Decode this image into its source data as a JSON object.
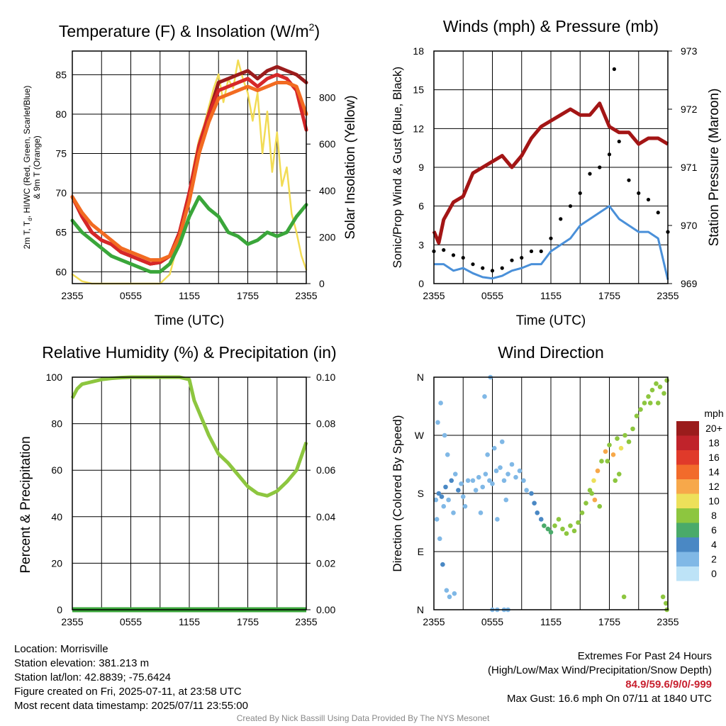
{
  "chart_data": [
    {
      "id": "temp",
      "type": "line",
      "title": "Temperature (F) & Insolation (W/m²)",
      "title_main": "Temperature (F) & Insolation (W/m",
      "title_sup": "2",
      "title_close": ")",
      "xlabel": "Time (UTC)",
      "ylabel_lines": [
        "2m T, T",
        "d",
        ", HI/WC (Red, Green, Scarlet/Blue)",
        "& 9m T (Orange)"
      ],
      "y2label": "Solar Insolation (Yellow)",
      "x_ticks": [
        "2355",
        "0555",
        "1155",
        "1755",
        "2355"
      ],
      "ylim": [
        58.5,
        88
      ],
      "y_ticks": [
        60,
        65,
        70,
        75,
        80,
        85
      ],
      "y2lim": [
        0,
        1000
      ],
      "y2_ticks": [
        0,
        200,
        400,
        600,
        800
      ],
      "series": [
        {
          "key": "insolation",
          "axis": "y2",
          "color": "#f2dc55",
          "hours": [
            0,
            1,
            2,
            3,
            4,
            5,
            6,
            7,
            8,
            9,
            10,
            11,
            11.5,
            12,
            12.5,
            13,
            13.5,
            14,
            14.5,
            15,
            15.5,
            16,
            16.5,
            17,
            17.5,
            18,
            18.5,
            19,
            19.5,
            20,
            20.5,
            21,
            21.5,
            22,
            22.5,
            23,
            23.5,
            24
          ],
          "values": [
            40,
            10,
            0,
            0,
            0,
            0,
            0,
            0,
            0,
            0,
            40,
            200,
            280,
            400,
            520,
            620,
            680,
            760,
            840,
            900,
            780,
            880,
            840,
            960,
            880,
            820,
            700,
            820,
            560,
            740,
            480,
            650,
            420,
            500,
            300,
            220,
            120,
            60
          ]
        },
        {
          "key": "temp_2m",
          "axis": "y1",
          "color": "#9b1c1c",
          "hours": [
            0,
            1,
            2,
            3,
            4,
            5,
            6,
            7,
            8,
            9,
            10,
            11,
            12,
            13,
            14,
            15,
            16,
            17,
            18,
            19,
            20,
            21,
            22,
            23,
            24
          ],
          "values": [
            69.5,
            67,
            65,
            64,
            63.5,
            62.5,
            62,
            61.5,
            61,
            61.2,
            62,
            65,
            70,
            76,
            80,
            84,
            84.5,
            85,
            85.5,
            84.5,
            85.5,
            86,
            85.5,
            85,
            84
          ]
        },
        {
          "key": "heat_index",
          "axis": "y1",
          "color": "#d62728",
          "hours": [
            0,
            1,
            2,
            3,
            4,
            5,
            6,
            7,
            8,
            9,
            10,
            11,
            12,
            13,
            14,
            15,
            16,
            17,
            18,
            19,
            20,
            21,
            22,
            23,
            24
          ],
          "values": [
            69.5,
            67,
            65,
            64,
            63.5,
            62.5,
            62,
            61.5,
            61,
            61.2,
            62,
            65,
            70,
            76,
            80,
            83,
            83.5,
            84,
            84.5,
            83.5,
            84.5,
            85,
            84.5,
            83,
            78
          ]
        },
        {
          "key": "temp_9m",
          "axis": "y1",
          "color": "#f26b21",
          "hours": [
            0,
            1,
            2,
            3,
            4,
            5,
            6,
            7,
            8,
            9,
            10,
            11,
            12,
            13,
            14,
            15,
            16,
            17,
            18,
            19,
            20,
            21,
            22,
            23,
            24
          ],
          "values": [
            69.5,
            67.5,
            66,
            65,
            64,
            63,
            62.5,
            62,
            61.5,
            61.5,
            62,
            64.5,
            69,
            75,
            79,
            82,
            82.5,
            83,
            83.5,
            83,
            83.5,
            84,
            84,
            83.5,
            80
          ]
        },
        {
          "key": "dewpoint",
          "axis": "y1",
          "color": "#3aa63a",
          "hours": [
            0,
            1,
            2,
            3,
            4,
            5,
            6,
            7,
            8,
            9,
            10,
            11,
            12,
            13,
            14,
            15,
            16,
            17,
            18,
            19,
            20,
            21,
            22,
            23,
            24
          ],
          "values": [
            66.5,
            65,
            64,
            63,
            62,
            61.5,
            61,
            60.5,
            60,
            60,
            61,
            63.5,
            67,
            69.5,
            68,
            67,
            65,
            64.5,
            63.5,
            64,
            65,
            64.5,
            65,
            67,
            68.5
          ]
        }
      ]
    },
    {
      "id": "wind",
      "type": "line",
      "title": "Winds (mph) & Pressure (mb)",
      "xlabel": "Time (UTC)",
      "ylabel": "Sonic/Prop Wind & Gust (Blue, Black)",
      "y2label": "Station Pressure (Maroon)",
      "x_ticks": [
        "2355",
        "0555",
        "1155",
        "1755",
        "2355"
      ],
      "ylim": [
        0,
        18
      ],
      "y_ticks": [
        0,
        3,
        6,
        9,
        12,
        15,
        18
      ],
      "y2lim": [
        969,
        973
      ],
      "y2_ticks": [
        969,
        970,
        971,
        972,
        973
      ],
      "series": [
        {
          "key": "wind_speed",
          "axis": "y1",
          "color": "#4a90d9",
          "hours": [
            0,
            1,
            2,
            3,
            4,
            5,
            6,
            7,
            8,
            9,
            10,
            11,
            12,
            13,
            14,
            15,
            16,
            17,
            18,
            19,
            20,
            21,
            22,
            23,
            24
          ],
          "values": [
            1.5,
            1.5,
            1,
            1.2,
            0.8,
            0.5,
            0.4,
            0.6,
            1,
            1.2,
            1.5,
            1.5,
            2.5,
            3,
            3.5,
            4.5,
            5,
            5.5,
            6,
            5,
            4.5,
            4,
            4,
            3.5,
            0.3
          ]
        },
        {
          "key": "gust",
          "axis": "y1",
          "color": "#000000",
          "hours": [
            0,
            1,
            2,
            3,
            4,
            5,
            6,
            7,
            8,
            9,
            10,
            11,
            12,
            13,
            14,
            15,
            16,
            17,
            18,
            18.5,
            19,
            20,
            21,
            22,
            23,
            24
          ],
          "values": [
            2.5,
            2.6,
            2.2,
            2,
            1.5,
            1.2,
            1,
            1.2,
            1.8,
            2,
            2.5,
            2.5,
            3.5,
            5,
            6,
            7,
            8.5,
            9,
            10,
            16.6,
            11,
            8,
            7,
            6.5,
            5.5,
            4
          ]
        },
        {
          "key": "pressure",
          "axis": "y2",
          "color": "#a31515",
          "hours": [
            0,
            0.5,
            1,
            2,
            3,
            4,
            5,
            6,
            7,
            8,
            9,
            10,
            11,
            12,
            13,
            14,
            15,
            16,
            17,
            18,
            19,
            20,
            21,
            22,
            23,
            24
          ],
          "values": [
            969.9,
            969.7,
            970.1,
            970.4,
            970.5,
            970.9,
            971.0,
            971.1,
            971.2,
            971.0,
            971.2,
            971.5,
            971.7,
            971.8,
            971.9,
            972.0,
            971.9,
            971.9,
            972.1,
            971.7,
            971.6,
            971.6,
            971.4,
            971.5,
            971.5,
            971.4
          ]
        }
      ]
    },
    {
      "id": "rh",
      "type": "line",
      "title": "Relative Humidity (%) & Precipitation (in)",
      "ylabel": "Percent & Precipitation",
      "x_ticks": [
        "2355",
        "0555",
        "1155",
        "1755",
        "2355"
      ],
      "ylim": [
        0,
        100
      ],
      "y_ticks": [
        0,
        20,
        40,
        60,
        80,
        100
      ],
      "y2lim": [
        0,
        0.1
      ],
      "y2_ticks": [
        "0.00",
        "0.02",
        "0.04",
        "0.06",
        "0.08",
        "0.10"
      ],
      "series": [
        {
          "key": "rh",
          "axis": "y1",
          "color": "#8dc63f",
          "hours": [
            0,
            0.5,
            1,
            2,
            3,
            4,
            5,
            6,
            7,
            8,
            9,
            10,
            11,
            12,
            12.5,
            13,
            14,
            15,
            16,
            17,
            18,
            19,
            20,
            21,
            22,
            23,
            24
          ],
          "values": [
            91,
            95,
            97,
            98,
            99,
            99.5,
            99.8,
            100,
            100,
            100,
            100,
            100,
            100,
            99,
            90,
            85,
            75,
            67,
            63,
            58,
            53,
            50,
            49,
            51,
            55,
            60,
            72
          ]
        },
        {
          "key": "precip",
          "axis": "y2",
          "color": "#3aa63a",
          "hours": [
            0,
            24
          ],
          "values": [
            0,
            0
          ]
        }
      ]
    },
    {
      "id": "dir",
      "type": "scatter",
      "title": "Wind Direction",
      "ylabel": "Direction (Colored By Speed)",
      "x_ticks": [
        "2355",
        "0555",
        "1155",
        "1755",
        "2355"
      ],
      "y_ticks": [
        "N",
        "E",
        "S",
        "W",
        "N"
      ],
      "ylim": [
        0,
        360
      ],
      "points": [
        [
          0.2,
          170,
          1
        ],
        [
          0.5,
          180,
          2
        ],
        [
          0.8,
          175,
          2
        ],
        [
          1,
          160,
          1
        ],
        [
          1.2,
          190,
          2
        ],
        [
          1.5,
          170,
          1
        ],
        [
          1.8,
          200,
          2
        ],
        [
          2,
          150,
          1
        ],
        [
          2.2,
          210,
          1
        ],
        [
          2.5,
          185,
          2
        ],
        [
          2.8,
          195,
          1
        ],
        [
          3,
          175,
          1
        ],
        [
          3.2,
          160,
          1
        ],
        [
          3.5,
          200,
          1
        ],
        [
          0.3,
          140,
          1
        ],
        [
          0.6,
          110,
          1
        ],
        [
          0.9,
          70,
          2
        ],
        [
          1.3,
          30,
          1
        ],
        [
          1.6,
          20,
          1
        ],
        [
          2.1,
          25,
          1
        ],
        [
          0.7,
          320,
          1
        ],
        [
          1.1,
          270,
          1
        ],
        [
          1.4,
          240,
          1
        ],
        [
          0.4,
          290,
          1
        ],
        [
          4,
          200,
          1
        ],
        [
          4.3,
          185,
          1
        ],
        [
          4.6,
          205,
          1
        ],
        [
          5,
          190,
          1
        ],
        [
          5.3,
          210,
          1
        ],
        [
          5.7,
          200,
          1
        ],
        [
          6,
          195,
          1
        ],
        [
          6.4,
          215,
          1
        ],
        [
          6.8,
          220,
          1
        ],
        [
          7.2,
          200,
          1
        ],
        [
          7.6,
          210,
          1
        ],
        [
          8,
          225,
          1
        ],
        [
          8.4,
          205,
          1
        ],
        [
          8.8,
          215,
          1
        ],
        [
          9.2,
          200,
          1
        ],
        [
          9.5,
          185,
          1
        ],
        [
          5.5,
          240,
          1
        ],
        [
          6.2,
          250,
          1
        ],
        [
          7,
          260,
          1
        ],
        [
          6.5,
          140,
          1
        ],
        [
          7.4,
          170,
          1
        ],
        [
          5.8,
          360,
          1
        ],
        [
          5.2,
          330,
          1
        ],
        [
          4.8,
          150,
          1
        ],
        [
          6,
          0,
          1
        ],
        [
          6.5,
          0,
          1
        ],
        [
          7.2,
          0,
          1
        ],
        [
          7.6,
          0,
          1
        ],
        [
          10,
          180,
          2
        ],
        [
          10.3,
          165,
          2
        ],
        [
          10.6,
          150,
          2
        ],
        [
          11,
          140,
          2
        ],
        [
          11.3,
          130,
          3
        ],
        [
          11.7,
          125,
          3
        ],
        [
          12,
          120,
          3
        ],
        [
          12.4,
          130,
          4
        ],
        [
          12.8,
          140,
          4
        ],
        [
          13.2,
          125,
          4
        ],
        [
          13.6,
          118,
          4
        ],
        [
          14,
          130,
          4
        ],
        [
          14.4,
          122,
          4
        ],
        [
          14.8,
          135,
          4
        ],
        [
          15.2,
          150,
          4
        ],
        [
          15.6,
          165,
          4
        ],
        [
          16,
          185,
          4
        ],
        [
          16.4,
          200,
          5
        ],
        [
          16.8,
          215,
          6
        ],
        [
          17.2,
          230,
          4
        ],
        [
          17.6,
          245,
          6
        ],
        [
          18,
          255,
          4
        ],
        [
          18.4,
          240,
          6
        ],
        [
          18.8,
          265,
          4
        ],
        [
          19.2,
          250,
          5
        ],
        [
          19.6,
          270,
          4
        ],
        [
          20,
          260,
          4
        ],
        [
          20.4,
          280,
          4
        ],
        [
          20.8,
          300,
          4
        ],
        [
          21.2,
          310,
          4
        ],
        [
          21.6,
          320,
          4
        ],
        [
          22,
          330,
          4
        ],
        [
          22.4,
          340,
          4
        ],
        [
          22.8,
          350,
          4
        ],
        [
          23.2,
          345,
          4
        ],
        [
          23.6,
          335,
          4
        ],
        [
          23.9,
          355,
          4
        ],
        [
          16.2,
          180,
          4
        ],
        [
          16.5,
          170,
          6
        ],
        [
          17,
          160,
          4
        ],
        [
          17.8,
          230,
          4
        ],
        [
          18.6,
          200,
          4
        ],
        [
          19,
          210,
          4
        ],
        [
          22.2,
          320,
          4
        ],
        [
          23,
          320,
          4
        ],
        [
          19.5,
          20,
          4
        ],
        [
          23.5,
          20,
          4
        ],
        [
          23.8,
          10,
          4
        ],
        [
          23.9,
          0,
          4
        ]
      ]
    }
  ],
  "legend": {
    "unit": "mph",
    "labels": [
      "20+",
      "18",
      "16",
      "14",
      "12",
      "10",
      "8",
      "6",
      "4",
      "2",
      "0"
    ],
    "colors": [
      "#9b1c1c",
      "#c0232b",
      "#e03a2a",
      "#f26b2b",
      "#f7a84a",
      "#ede05a",
      "#8dc63f",
      "#4aaa6a",
      "#4a88c4",
      "#80b8e6",
      "#bde3f7"
    ]
  },
  "info_left": [
    "Location: Morrisville",
    "Station elevation: 381.213 m",
    "Station lat/lon: 42.8839; -75.6424",
    "Figure created on Fri, 2025-07-11, at 23:58 UTC",
    "Most recent data timestamp: 2025/07/11 23:55:00"
  ],
  "info_right": {
    "heading": "Extremes For Past 24 Hours",
    "subheading": "(High/Low/Max Wind/Precipitation/Snow Depth)",
    "values": "84.9/59.6/9/0/-999",
    "gust": "Max Gust: 16.6 mph On 07/11 at 1840 UTC"
  },
  "credit": "Created By Nick Bassill Using Data Provided By The NYS Mesonet"
}
